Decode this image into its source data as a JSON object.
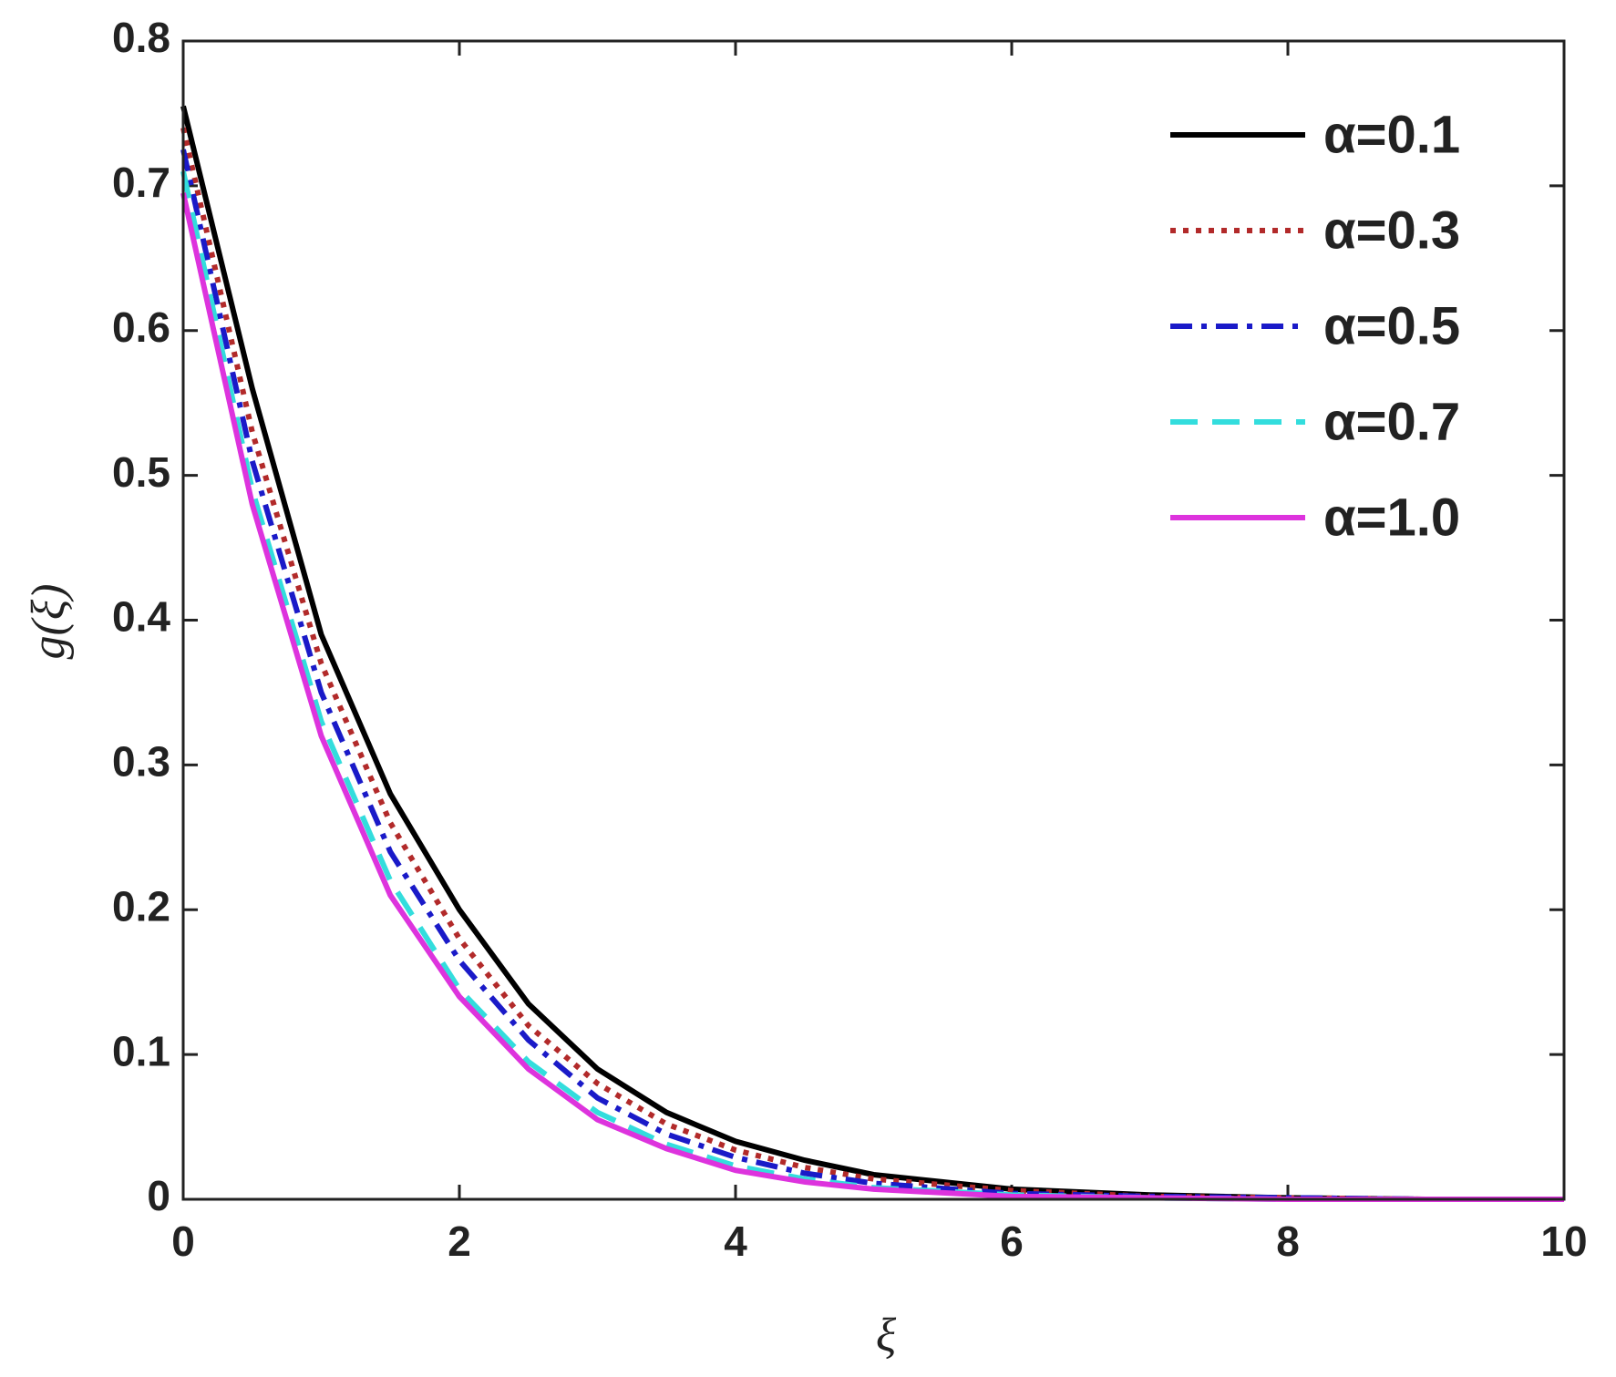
{
  "chart_data": {
    "type": "line",
    "x_label": "ξ",
    "y_label": "g(ξ)",
    "x": [
      0,
      0.5,
      1,
      1.5,
      2,
      2.5,
      3,
      3.5,
      4,
      4.5,
      5,
      6,
      7,
      8,
      9,
      10
    ],
    "series": [
      {
        "name": "α=0.1",
        "color": "#000000",
        "linestyle": "solid",
        "values": [
          0.755,
          0.56,
          0.39,
          0.28,
          0.2,
          0.135,
          0.09,
          0.06,
          0.04,
          0.027,
          0.017,
          0.007,
          0.003,
          0.001,
          0,
          0
        ]
      },
      {
        "name": "α=0.3",
        "color": "#b22a2a",
        "linestyle": "dotted",
        "values": [
          0.74,
          0.53,
          0.37,
          0.26,
          0.18,
          0.12,
          0.08,
          0.052,
          0.034,
          0.022,
          0.014,
          0.006,
          0.002,
          0.001,
          0,
          0
        ]
      },
      {
        "name": "α=0.5",
        "color": "#1a1ac8",
        "linestyle": "dashdot",
        "values": [
          0.725,
          0.51,
          0.35,
          0.24,
          0.165,
          0.11,
          0.07,
          0.045,
          0.029,
          0.018,
          0.011,
          0.004,
          0.002,
          0.001,
          0,
          0
        ]
      },
      {
        "name": "α=0.7",
        "color": "#33dddd",
        "linestyle": "dashed",
        "values": [
          0.71,
          0.49,
          0.33,
          0.22,
          0.145,
          0.095,
          0.06,
          0.038,
          0.023,
          0.014,
          0.008,
          0.003,
          0.001,
          0,
          0,
          0
        ]
      },
      {
        "name": "α=1.0",
        "color": "#dd33dd",
        "linestyle": "solid",
        "values": [
          0.695,
          0.48,
          0.32,
          0.21,
          0.14,
          0.09,
          0.055,
          0.035,
          0.02,
          0.012,
          0.007,
          0.002,
          0.001,
          0,
          0,
          0
        ]
      }
    ],
    "xlim": [
      0,
      10
    ],
    "xticks": [
      0,
      2,
      4,
      6,
      8,
      10
    ],
    "ylim": [
      0,
      0.8
    ],
    "yticks": [
      0,
      0.1,
      0.2,
      0.3,
      0.4,
      0.5,
      0.6,
      0.7,
      0.8
    ],
    "grid": false,
    "legend": "upper right"
  }
}
